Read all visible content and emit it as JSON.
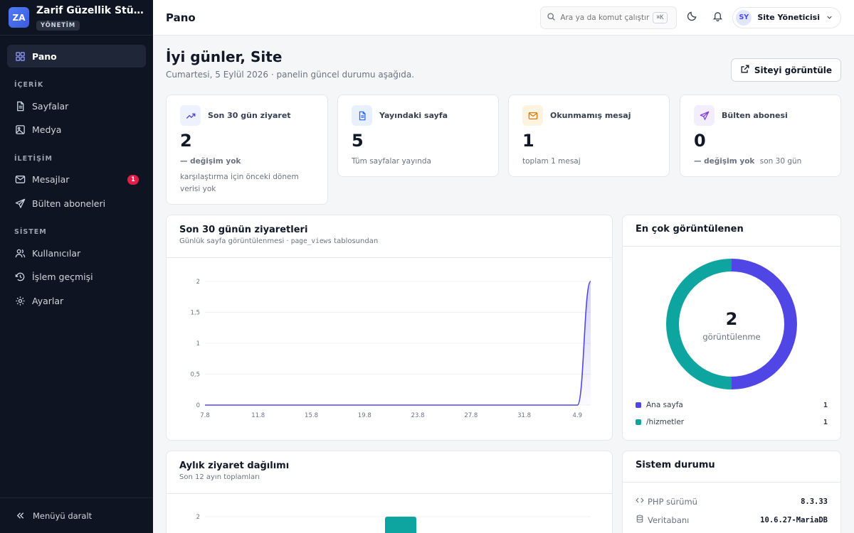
{
  "brand": {
    "logo": "ZA",
    "name": "Zarif Güzellik Stüdyosu",
    "badge": "YÖNETİM"
  },
  "sidebar": {
    "active": {
      "label": "Pano",
      "icon": "dashboard-icon"
    },
    "sections": [
      {
        "title": "İÇERİK",
        "items": [
          {
            "label": "Sayfalar",
            "icon": "file-icon"
          },
          {
            "label": "Medya",
            "icon": "image-icon"
          }
        ]
      },
      {
        "title": "İLETİŞİM",
        "items": [
          {
            "label": "Mesajlar",
            "icon": "mail-icon",
            "badge": "1"
          },
          {
            "label": "Bülten aboneleri",
            "icon": "send-icon"
          }
        ]
      },
      {
        "title": "SİSTEM",
        "items": [
          {
            "label": "Kullanıcılar",
            "icon": "users-icon"
          },
          {
            "label": "İşlem geçmişi",
            "icon": "history-icon"
          },
          {
            "label": "Ayarlar",
            "icon": "gear-icon"
          }
        ]
      }
    ],
    "collapse_label": "Menüyü daralt"
  },
  "topbar": {
    "title": "Pano",
    "search_placeholder": "Ara ya da komut çalıştır",
    "shortcut": "⌘K",
    "user_initials": "SY",
    "user_name": "Site Yöneticisi"
  },
  "header": {
    "greeting": "İyi günler, Site",
    "subtitle": "Cumartesi, 5 Eylül 2026 · panelin güncel durumu aşağıda.",
    "view_site": "Siteyi görüntüle"
  },
  "stats": [
    {
      "label": "Son 30 gün ziyaret",
      "value": "2",
      "sub_strong": "— değişim yok",
      "sub_rest": "",
      "note": "karşılaştırma için önceki dönem verisi yok",
      "icon": "trending-up-icon",
      "color": "#4f46e5",
      "bg": "#eef2ff"
    },
    {
      "label": "Yayındaki sayfa",
      "value": "5",
      "sub_strong": "",
      "sub_rest": "Tüm sayfalar yayında",
      "note": "",
      "icon": "file-icon",
      "color": "#2563eb",
      "bg": "#e8f0fe"
    },
    {
      "label": "Okunmamış mesaj",
      "value": "1",
      "sub_strong": "",
      "sub_rest": "toplam 1 mesaj",
      "note": "",
      "icon": "mail-icon",
      "color": "#d97706",
      "bg": "#fdf3e1"
    },
    {
      "label": "Bülten abonesi",
      "value": "0",
      "sub_strong": "— değişim yok",
      "sub_rest": "son 30 gün",
      "note": "",
      "icon": "send-icon",
      "color": "#7c3aed",
      "bg": "#f3eefe"
    }
  ],
  "visits_card": {
    "title": "Son 30 günün ziyaretleri",
    "subtitle_text": "Günlük sayfa görüntülenmesi · ",
    "subtitle_code": "page_views",
    "subtitle_tail": " tablosundan"
  },
  "top_viewed": {
    "title": "En çok görüntülenen",
    "total": "2",
    "total_label": "görüntülenme",
    "items": [
      {
        "label": "Ana sayfa",
        "value": "1",
        "color": "#4f46e5"
      },
      {
        "label": "/hizmetler",
        "value": "1",
        "color": "#0ea5a0"
      }
    ]
  },
  "monthly_card": {
    "title": "Aylık ziyaret dağılımı",
    "subtitle": "Son 12 ayın toplamları"
  },
  "system": {
    "title": "Sistem durumu",
    "rows": [
      {
        "label": "PHP sürümü",
        "value": "8.3.33",
        "icon": "code-icon"
      },
      {
        "label": "Veritabanı",
        "value": "10.6.27-MariaDB",
        "icon": "database-icon"
      }
    ]
  },
  "chart_data": [
    {
      "type": "area",
      "x": [
        "7.8",
        "8.8",
        "9.8",
        "10.8",
        "11.8",
        "12.8",
        "13.8",
        "14.8",
        "15.8",
        "16.8",
        "17.8",
        "18.8",
        "19.8",
        "20.8",
        "21.8",
        "22.8",
        "23.8",
        "24.8",
        "25.8",
        "26.8",
        "27.8",
        "28.8",
        "29.8",
        "30.8",
        "31.8",
        "1.9",
        "2.9",
        "3.9",
        "4.9",
        "5.9"
      ],
      "values": [
        0,
        0,
        0,
        0,
        0,
        0,
        0,
        0,
        0,
        0,
        0,
        0,
        0,
        0,
        0,
        0,
        0,
        0,
        0,
        0,
        0,
        0,
        0,
        0,
        0,
        0,
        0,
        0,
        0,
        2
      ],
      "x_tick_labels": [
        "7.8",
        "11.8",
        "15.8",
        "19.8",
        "23.8",
        "27.8",
        "31.8",
        "4.9"
      ],
      "y_ticks": [
        "0",
        "0,5",
        "1",
        "1,5",
        "2"
      ],
      "ylim": [
        0,
        2
      ],
      "color": "#4f46e5"
    },
    {
      "type": "pie",
      "labels": [
        "Ana sayfa",
        "/hizmetler"
      ],
      "values": [
        1,
        1
      ],
      "colors": [
        "#4f46e5",
        "#0ea5a0"
      ]
    },
    {
      "type": "bar",
      "y_ticks": [
        "2"
      ],
      "values": [
        2
      ],
      "color": "#0ea5a0"
    }
  ]
}
